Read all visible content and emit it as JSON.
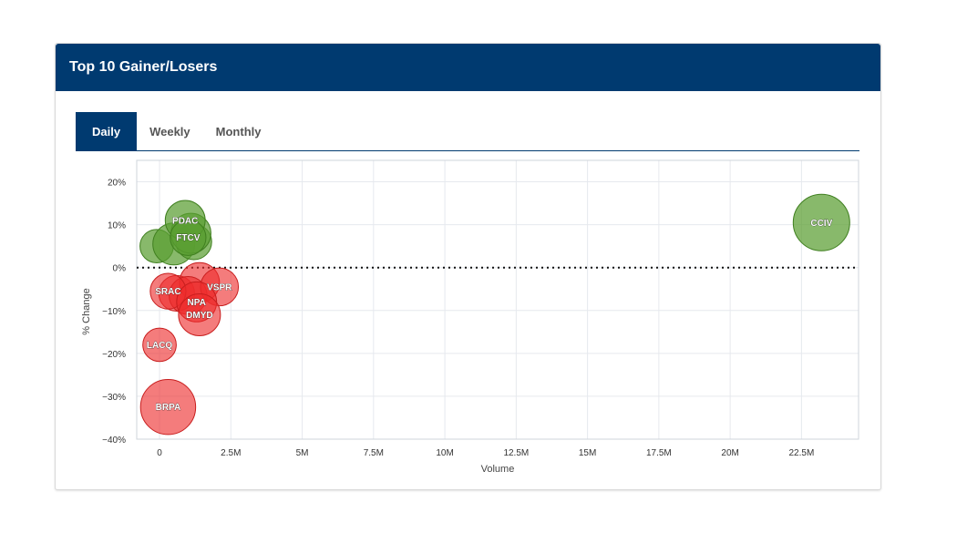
{
  "header": {
    "title": "Top 10 Gainer/Losers"
  },
  "tabs": [
    {
      "label": "Daily",
      "active": true
    },
    {
      "label": "Weekly",
      "active": false
    },
    {
      "label": "Monthly",
      "active": false
    }
  ],
  "colors": {
    "header_bg": "#003a70",
    "gainer": "#5a9e32",
    "loser": "#ee2b2b"
  },
  "chart_data": {
    "type": "scatter",
    "subtype": "bubble",
    "title": "",
    "xlabel": "Volume",
    "ylabel": "% Change",
    "xlim": [
      -800000,
      24500000
    ],
    "ylim": [
      -40,
      25
    ],
    "x_ticks": [
      {
        "value": 0,
        "label": "0"
      },
      {
        "value": 2500000,
        "label": "2.5M"
      },
      {
        "value": 5000000,
        "label": "5M"
      },
      {
        "value": 7500000,
        "label": "7.5M"
      },
      {
        "value": 10000000,
        "label": "10M"
      },
      {
        "value": 12500000,
        "label": "12.5M"
      },
      {
        "value": 15000000,
        "label": "15M"
      },
      {
        "value": 17500000,
        "label": "17.5M"
      },
      {
        "value": 20000000,
        "label": "20M"
      },
      {
        "value": 22500000,
        "label": "22.5M"
      }
    ],
    "y_ticks": [
      {
        "value": 20,
        "label": "20%"
      },
      {
        "value": 10,
        "label": "10%"
      },
      {
        "value": 0,
        "label": "0%"
      },
      {
        "value": -10,
        "label": "−10%"
      },
      {
        "value": -20,
        "label": "−20%"
      },
      {
        "value": -30,
        "label": "−30%"
      },
      {
        "value": -40,
        "label": "−40%"
      }
    ],
    "zero_line": true,
    "grid": true,
    "series": [
      {
        "group": "gainers",
        "points": [
          {
            "label": "",
            "x": -100000,
            "y": 5,
            "size": 0.35
          },
          {
            "label": "",
            "x": 500000,
            "y": 5.5,
            "size": 0.55
          },
          {
            "label": "",
            "x": 1200000,
            "y": 6,
            "size": 0.4
          },
          {
            "label": "",
            "x": 1100000,
            "y": 8,
            "size": 0.5
          },
          {
            "label": "PDAC",
            "x": 900000,
            "y": 11,
            "size": 0.5
          },
          {
            "label": "FTCV",
            "x": 1000000,
            "y": 7,
            "size": 0.4
          },
          {
            "label": "CCIV",
            "x": 23200000,
            "y": 10.5,
            "size": 1.0
          }
        ]
      },
      {
        "group": "losers",
        "points": [
          {
            "label": "",
            "x": 600000,
            "y": -6,
            "size": 0.4
          },
          {
            "label": "",
            "x": 1400000,
            "y": -3.5,
            "size": 0.5
          },
          {
            "label": "",
            "x": 1000000,
            "y": -6.5,
            "size": 0.45
          },
          {
            "label": "SRAC",
            "x": 300000,
            "y": -5.5,
            "size": 0.4
          },
          {
            "label": "VSPR",
            "x": 2100000,
            "y": -4.5,
            "size": 0.45
          },
          {
            "label": "NPA",
            "x": 1300000,
            "y": -8,
            "size": 0.5
          },
          {
            "label": "DMYD",
            "x": 1400000,
            "y": -11,
            "size": 0.55
          },
          {
            "label": "LACQ",
            "x": 0,
            "y": -18,
            "size": 0.35
          },
          {
            "label": "BRPA",
            "x": 300000,
            "y": -32.5,
            "size": 0.95
          }
        ]
      }
    ]
  }
}
